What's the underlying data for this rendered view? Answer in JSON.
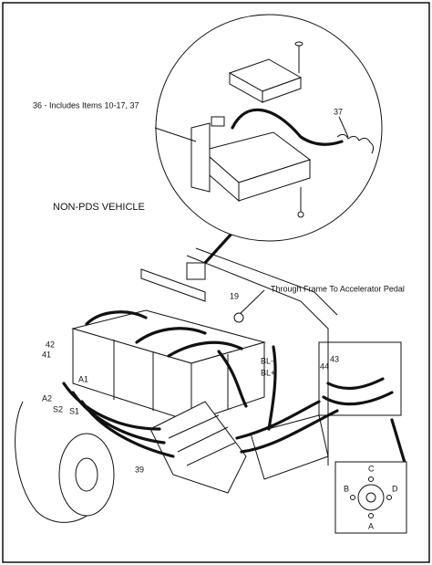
{
  "zoom_note": "36 - Includes Items 10-17, 37",
  "vehicle_label": "NON-PDS VEHICLE",
  "route_note": "Through Frame To Accelerator Pedal",
  "callouts": [
    "37",
    "19",
    "42",
    "41",
    "44",
    "43",
    "A1",
    "A2",
    "S2",
    "S1",
    "BL-",
    "BL+",
    "39"
  ],
  "terminal_plate": [
    "C",
    "B",
    "D",
    "A"
  ]
}
